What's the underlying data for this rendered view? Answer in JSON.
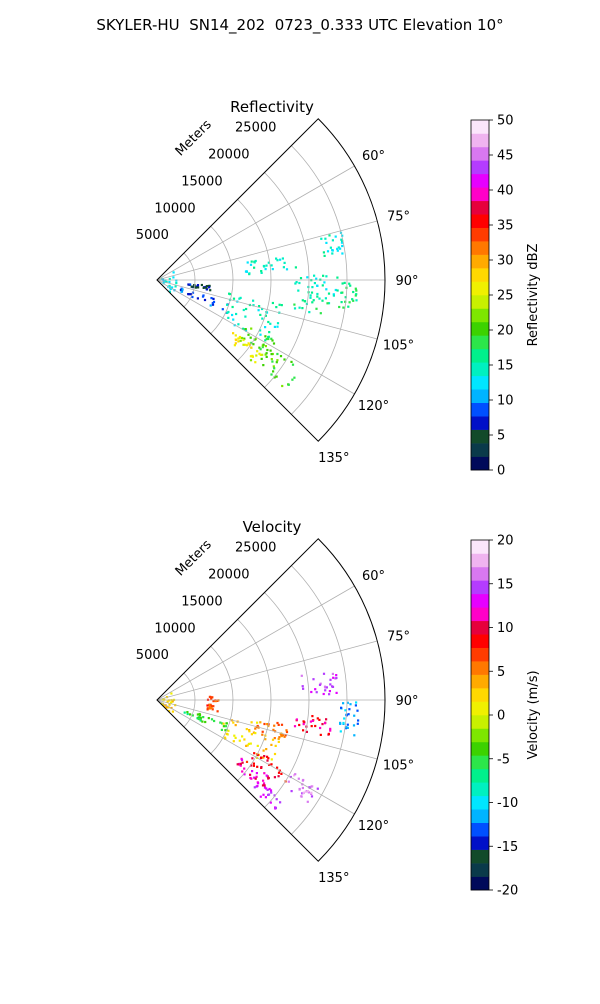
{
  "figure": {
    "title": "SKYLER-HU  SN14_202  0723_0.333 UTC Elevation 10°"
  },
  "chart_data": [
    {
      "type": "heatmap",
      "projection": "polar-sector",
      "title": "Reflectivity",
      "radial_label": "Meters",
      "radial_ticks": [
        5000,
        10000,
        15000,
        20000,
        25000
      ],
      "r_range": [
        0,
        30000
      ],
      "angle_range": [
        45,
        135
      ],
      "angle_ticks": [
        60,
        75,
        90,
        105,
        120,
        135
      ],
      "angle_tick_labels": [
        "60°",
        "75°",
        "90°",
        "105°",
        "120°",
        "135°"
      ],
      "grid": true,
      "colorbar": {
        "label": "Reflectivity dBZ",
        "range": [
          0,
          50
        ],
        "ticks": [
          0,
          5,
          10,
          15,
          20,
          25,
          30,
          35,
          40,
          45,
          50
        ],
        "stops": [
          "#000a5a",
          "#0a3a4a",
          "#124a2a",
          "#0010c8",
          "#0050ff",
          "#00b4ff",
          "#00e6ff",
          "#00f0c0",
          "#00f08c",
          "#2ce64a",
          "#3cd200",
          "#7ee600",
          "#c8f000",
          "#f0f000",
          "#ffd800",
          "#ffaa00",
          "#ff7800",
          "#ff3c00",
          "#ff0000",
          "#e6003c",
          "#ff00c8",
          "#e600ff",
          "#b43cff",
          "#d878f0",
          "#f0b4f0",
          "#fce6fc"
        ]
      },
      "echo_regions": [
        {
          "angle": [
            107,
            115
          ],
          "r": [
            3000,
            10000
          ],
          "value": 8
        },
        {
          "angle": [
            95,
            100
          ],
          "r": [
            4000,
            7000
          ],
          "value": 6
        },
        {
          "angle": [
            100,
            110
          ],
          "r": [
            9000,
            17000
          ],
          "value": 15
        },
        {
          "angle": [
            110,
            120
          ],
          "r": [
            10000,
            17000
          ],
          "value": 14
        },
        {
          "angle": [
            117,
            127
          ],
          "r": [
            13000,
            19000
          ],
          "value": 21
        },
        {
          "angle": [
            124,
            130
          ],
          "r": [
            12000,
            17000
          ],
          "value": 26
        },
        {
          "angle": [
            121,
            131
          ],
          "r": [
            16000,
            22000
          ],
          "value": 20
        },
        {
          "angle": [
            95,
            102
          ],
          "r": [
            18000,
            23000
          ],
          "value": 16
        },
        {
          "angle": [
            88,
            95
          ],
          "r": [
            18000,
            25000
          ],
          "value": 15
        },
        {
          "angle": [
            78,
            88
          ],
          "r": [
            11000,
            19000
          ],
          "value": 14
        },
        {
          "angle": [
            75,
            82
          ],
          "r": [
            22000,
            25000
          ],
          "value": 14
        },
        {
          "angle": [
            90,
            100
          ],
          "r": [
            24000,
            26500
          ],
          "value": 17
        },
        {
          "angle": [
            60,
            135
          ],
          "r": [
            500,
            2500
          ],
          "value": 13
        }
      ]
    },
    {
      "type": "heatmap",
      "projection": "polar-sector",
      "title": "Velocity",
      "radial_label": "Meters",
      "radial_ticks": [
        5000,
        10000,
        15000,
        20000,
        25000
      ],
      "r_range": [
        0,
        30000
      ],
      "angle_range": [
        45,
        135
      ],
      "angle_ticks": [
        60,
        75,
        90,
        105,
        120,
        135
      ],
      "angle_tick_labels": [
        "60°",
        "75°",
        "90°",
        "105°",
        "120°",
        "135°"
      ],
      "grid": true,
      "colorbar": {
        "label": "Velocity (m/s)",
        "range": [
          -20,
          20
        ],
        "ticks": [
          -20,
          -15,
          -10,
          -5,
          0,
          5,
          10,
          15,
          20
        ],
        "stops": [
          "#000a5a",
          "#0a3a4a",
          "#124a2a",
          "#0010c8",
          "#0050ff",
          "#00b4ff",
          "#00e6ff",
          "#00f0c0",
          "#00f08c",
          "#2ce64a",
          "#3cd200",
          "#7ee600",
          "#c8f000",
          "#f0f000",
          "#ffd800",
          "#ffaa00",
          "#ff7800",
          "#ff3c00",
          "#ff0000",
          "#e6003c",
          "#ff00c8",
          "#e600ff",
          "#b43cff",
          "#d878f0",
          "#f0b4f0",
          "#fce6fc"
        ]
      },
      "echo_regions": [
        {
          "angle": [
            107,
            115
          ],
          "r": [
            3000,
            10000
          ],
          "value": -5
        },
        {
          "angle": [
            100,
            110
          ],
          "r": [
            9000,
            17000
          ],
          "value": 3
        },
        {
          "angle": [
            110,
            120
          ],
          "r": [
            10000,
            17000
          ],
          "value": 2
        },
        {
          "angle": [
            100,
            108
          ],
          "r": [
            13000,
            18000
          ],
          "value": 6
        },
        {
          "angle": [
            117,
            125
          ],
          "r": [
            14000,
            20000
          ],
          "value": 9
        },
        {
          "angle": [
            124,
            131
          ],
          "r": [
            13000,
            18000
          ],
          "value": 11
        },
        {
          "angle": [
            128,
            133
          ],
          "r": [
            17000,
            21000
          ],
          "value": 14
        },
        {
          "angle": [
            118,
            124
          ],
          "r": [
            20000,
            24000
          ],
          "value": 16
        },
        {
          "angle": [
            95,
            102
          ],
          "r": [
            18000,
            23000
          ],
          "value": 10
        },
        {
          "angle": [
            80,
            88
          ],
          "r": [
            19000,
            24000
          ],
          "value": 15
        },
        {
          "angle": [
            90,
            100
          ],
          "r": [
            24000,
            26500
          ],
          "value": -12
        },
        {
          "angle": [
            85,
            100
          ],
          "r": [
            6500,
            8000
          ],
          "value": 7
        },
        {
          "angle": [
            60,
            135
          ],
          "r": [
            500,
            2500
          ],
          "value": 2
        }
      ]
    }
  ]
}
